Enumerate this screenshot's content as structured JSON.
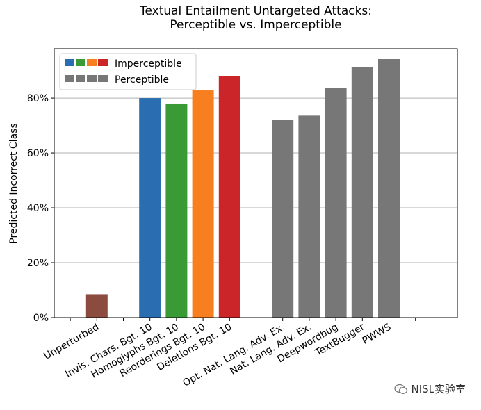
{
  "chart_data": {
    "type": "bar",
    "title": [
      "Textual Entailment Untargeted Attacks:",
      "Perceptible vs. Imperceptible"
    ],
    "xlabel": "",
    "ylabel": "Predicted Incorrect Class",
    "ylim": [
      0,
      98
    ],
    "yticks": [
      0,
      20,
      40,
      60,
      80
    ],
    "ytick_labels": [
      "0%",
      "20%",
      "40%",
      "60%",
      "80%"
    ],
    "grid": "horizontal",
    "legend_position": "top-left",
    "categories": [
      "Unperturbed",
      "Invis. Chars. Bgt. 10",
      "Homoglyphs Bgt. 10",
      "Reorderings Bgt. 10",
      "Deletions Bgt. 10",
      "Opt. Nat. Lang. Adv. Ex.",
      "Nat. Lang. Adv. Ex.",
      "Deepwordbug",
      "TextBugger",
      "PWWS"
    ],
    "bars": [
      {
        "label": "Unperturbed",
        "value": 8.5,
        "color": "#8c4b3f",
        "group": "baseline"
      },
      {
        "label": "Invis. Chars. Bgt. 10",
        "value": 80,
        "color": "#2a6db0",
        "group": "Imperceptible"
      },
      {
        "label": "Homoglyphs Bgt. 10",
        "value": 78,
        "color": "#3a9a35",
        "group": "Imperceptible"
      },
      {
        "label": "Reorderings Bgt. 10",
        "value": 82.8,
        "color": "#f77f20",
        "group": "Imperceptible"
      },
      {
        "label": "Deletions Bgt. 10",
        "value": 88,
        "color": "#cc2529",
        "group": "Imperceptible"
      },
      {
        "label": "Opt. Nat. Lang. Adv. Ex.",
        "value": 72,
        "color": "#777777",
        "group": "Perceptible"
      },
      {
        "label": "Nat. Lang. Adv. Ex.",
        "value": 73.6,
        "color": "#777777",
        "group": "Perceptible"
      },
      {
        "label": "Deepwordbug",
        "value": 83.8,
        "color": "#777777",
        "group": "Perceptible"
      },
      {
        "label": "TextBugger",
        "value": 91.2,
        "color": "#777777",
        "group": "Perceptible"
      },
      {
        "label": "PWWS",
        "value": 94.2,
        "color": "#777777",
        "group": "Perceptible"
      }
    ],
    "legend": [
      {
        "name": "Imperceptible",
        "colors": [
          "#2a6db0",
          "#3a9a35",
          "#f77f20",
          "#cc2529"
        ]
      },
      {
        "name": "Perceptible",
        "colors": [
          "#777777",
          "#777777",
          "#777777",
          "#777777"
        ]
      }
    ]
  },
  "watermark": {
    "text": "NISL实验室",
    "icon": "wechat-icon"
  }
}
